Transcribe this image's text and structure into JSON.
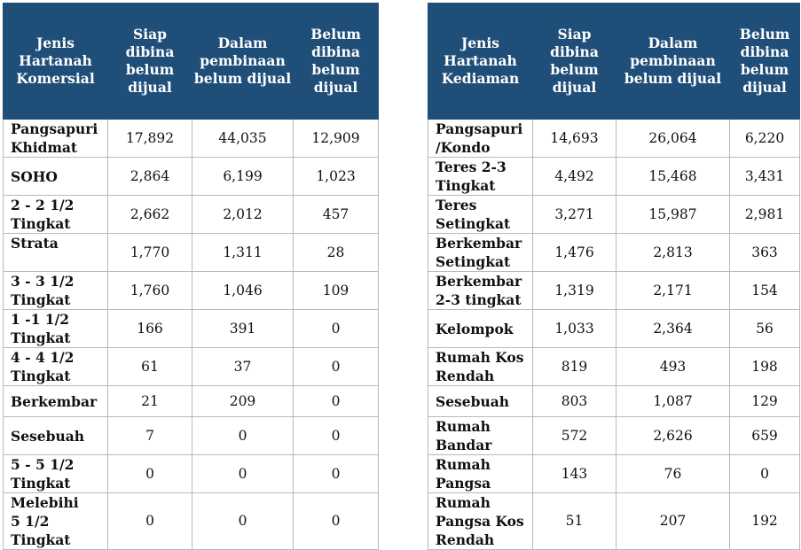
{
  "commercial": {
    "headers": [
      "Jenis\nHartanah\nKomersial",
      "Siap\ndibina\nbelum\ndijual",
      "Dalam\npembinaan\nbelum dijual",
      "Belum\ndibina\nbelum\ndijual"
    ],
    "rows": [
      [
        "Pangsapuri\nKhidmat",
        "17,892",
        "44,035",
        "12,909"
      ],
      [
        "SOHO",
        "2,864",
        "6,199",
        "1,023"
      ],
      [
        "2 - 2 1/2\nTingkat",
        "2,662",
        "2,012",
        "457"
      ],
      [
        "Strata",
        "1,770",
        "1,311",
        "28"
      ],
      [
        "3 - 3 1/2\nTingkat",
        "1,760",
        "1,046",
        "109"
      ],
      [
        "1 -1 1/2\nTingkat",
        "166",
        "391",
        "0"
      ],
      [
        "4 - 4 1/2\nTingkat",
        "61",
        "37",
        "0"
      ],
      [
        "Berkembar",
        "21",
        "209",
        "0"
      ],
      [
        "Sesebuah",
        "7",
        "0",
        "0"
      ],
      [
        "5 - 5 1/2\nTingkat",
        "0",
        "0",
        "0"
      ],
      [
        "Melebihi\n5 1/2\nTingkat",
        "0",
        "0",
        "0"
      ]
    ]
  },
  "residential": {
    "headers": [
      "Jenis\nHartanah\nKediaman",
      "Siap\ndibina\nbelum\ndijual",
      "Dalam\npembinaan\nbelum dijual",
      "Belum\ndibina\nbelum\ndijual"
    ],
    "rows": [
      [
        "Pangsapuri\n/Kondo",
        "14,693",
        "26,064",
        "6,220"
      ],
      [
        "Teres 2-3\nTingkat",
        "4,492",
        "15,468",
        "3,431"
      ],
      [
        "Teres\nSetingkat",
        "3,271",
        "15,987",
        "2,981"
      ],
      [
        "Berkembar\nSetingkat",
        "1,476",
        "2,813",
        "363"
      ],
      [
        "Berkembar\n2-3 tingkat",
        "1,319",
        "2,171",
        "154"
      ],
      [
        "Kelompok",
        "1,033",
        "2,364",
        "56"
      ],
      [
        "Rumah Kos\nRendah",
        "819",
        "493",
        "198"
      ],
      [
        "Sesebuah",
        "803",
        "1,087",
        "129"
      ],
      [
        "Rumah\nBandar",
        "572",
        "2,626",
        "659"
      ],
      [
        "Rumah\nPangsa",
        "143",
        "76",
        "0"
      ],
      [
        "Rumah\nPangsa Kos\nRendah",
        "51",
        "207",
        "192"
      ]
    ]
  }
}
